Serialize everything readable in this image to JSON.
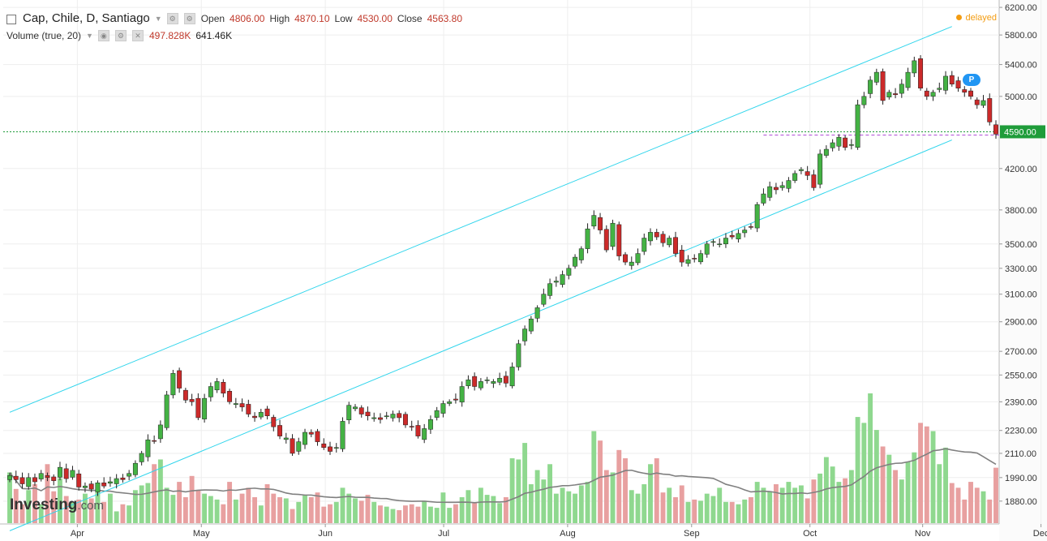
{
  "header": {
    "title": "Cap, Chile, D, Santiago",
    "open_label": "Open",
    "open_value": "4806.00",
    "high_label": "High",
    "high_value": "4870.10",
    "low_label": "Low",
    "low_value": "4530.00",
    "close_label": "Close",
    "close_value": "4563.80",
    "volume_label": "Volume (true, 20)",
    "volume_value": "497.828K",
    "volume_ma_value": "641.46K",
    "delayed": "delayed"
  },
  "logo": {
    "brand": "Investing",
    "suffix": ".com"
  },
  "event_badge": "P",
  "colors": {
    "up": "#44b244",
    "down": "#cc2a2a",
    "up_volume": "#8fd88f",
    "down_volume": "#e8a0a0",
    "channel": "#2fd5ec",
    "price_line": "#1f9c3a",
    "ma_line": "#808080",
    "delayed": "#f39c12"
  },
  "chart_data": {
    "type": "candlestick",
    "x_tick_labels": [
      "Apr",
      "May",
      "Jun",
      "Jul",
      "Aug",
      "Sep",
      "Oct",
      "Nov",
      "Dec"
    ],
    "y_tick_labels": [
      "6200.00",
      "5800.00",
      "5400.00",
      "5000.00",
      "4200.00",
      "3800.00",
      "3500.00",
      "3300.00",
      "3100.00",
      "2900.00",
      "2700.00",
      "2550.00",
      "2390.00",
      "2230.00",
      "2110.00",
      "1990.00",
      "1880.00"
    ],
    "y_scale": "log",
    "ylim": [
      1800,
      6250
    ],
    "current_price": "4590.00",
    "channel": {
      "upper": [
        [
          0,
          2330
        ],
        [
          150,
          5920
        ]
      ],
      "lower": [
        [
          0,
          1750
        ],
        [
          150,
          4500
        ]
      ]
    },
    "volume_pane": true,
    "grid": true,
    "legend": "none",
    "closes": [
      2000,
      1980,
      1960,
      1990,
      1970,
      2010,
      1990,
      1975,
      2040,
      1985,
      2025,
      1945,
      1950,
      1935,
      1965,
      1950,
      1970,
      1985,
      1980,
      2010,
      2060,
      2110,
      2180,
      2175,
      2260,
      2430,
      2560,
      2470,
      2400,
      2390,
      2300,
      2410,
      2480,
      2510,
      2440,
      2390,
      2380,
      2360,
      2320,
      2300,
      2330,
      2310,
      2250,
      2200,
      2190,
      2110,
      2170,
      2220,
      2210,
      2170,
      2140,
      2120,
      2140,
      2280,
      2370,
      2360,
      2320,
      2310,
      2300,
      2290,
      2310,
      2320,
      2300,
      2260,
      2250,
      2200,
      2240,
      2290,
      2340,
      2380,
      2390,
      2400,
      2480,
      2520,
      2480,
      2510,
      2520,
      2510,
      2530,
      2500,
      2600,
      2750,
      2850,
      2920,
      3000,
      3100,
      3180,
      3200,
      3250,
      3300,
      3390,
      3460,
      3630,
      3750,
      3620,
      3450,
      3680,
      3400,
      3350,
      3350,
      3420,
      3550,
      3600,
      3560,
      3510,
      3550,
      3420,
      3350,
      3370,
      3380,
      3420,
      3500,
      3520,
      3500,
      3550,
      3560,
      3590,
      3620,
      3650,
      3850,
      3950,
      4020,
      3990,
      4030,
      4080,
      4150,
      4190,
      4130,
      4010,
      4350,
      4400,
      4470,
      4530,
      4420,
      4450,
      4900,
      5000,
      5200,
      5300,
      4950,
      5050,
      5020,
      5150,
      5300,
      5450,
      5100,
      5000,
      5050,
      5100,
      5250,
      5150,
      5100,
      5050,
      5000,
      4900,
      4950,
      4700,
      4563.8
    ],
    "volumes": [
      430,
      290,
      160,
      280,
      330,
      160,
      500,
      270,
      380,
      230,
      180,
      200,
      250,
      210,
      310,
      180,
      250,
      100,
      160,
      150,
      280,
      320,
      340,
      500,
      540,
      300,
      240,
      350,
      220,
      400,
      280,
      250,
      230,
      200,
      160,
      350,
      200,
      250,
      300,
      220,
      150,
      330,
      250,
      220,
      210,
      120,
      180,
      240,
      220,
      260,
      140,
      160,
      180,
      300,
      250,
      210,
      190,
      240,
      180,
      150,
      140,
      120,
      110,
      150,
      160,
      140,
      190,
      140,
      130,
      260,
      130,
      160,
      220,
      280,
      170,
      300,
      240,
      230,
      170,
      220,
      550,
      540,
      680,
      330,
      450,
      370,
      500,
      250,
      300,
      270,
      250,
      320,
      350,
      780,
      700,
      450,
      430,
      620,
      550,
      280,
      250,
      330,
      500,
      550,
      260,
      300,
      220,
      320,
      180,
      200,
      190,
      250,
      230,
      300,
      180,
      180,
      160,
      200,
      220,
      350,
      300,
      270,
      330,
      300,
      350,
      300,
      320,
      210,
      370,
      420,
      560,
      480,
      350,
      380,
      450,
      900,
      850,
      1100,
      790,
      650,
      580,
      450,
      370,
      520,
      600,
      850,
      820,
      780,
      500,
      640,
      340,
      300,
      200,
      350,
      300,
      270,
      200,
      470
    ]
  }
}
